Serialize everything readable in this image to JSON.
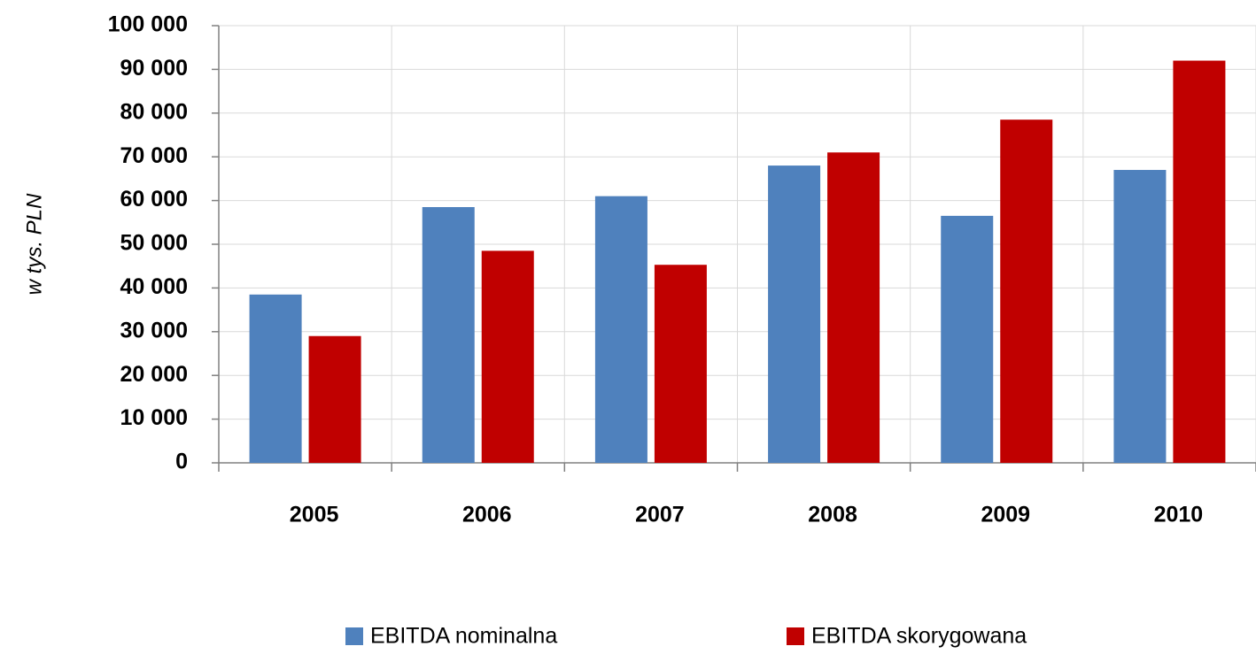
{
  "chart_data": {
    "type": "bar",
    "y_label": "w tys. PLN",
    "categories": [
      "2005",
      "2006",
      "2007",
      "2008",
      "2009",
      "2010"
    ],
    "series": [
      {
        "name": "EBITDA nominalna",
        "color": "#4f81bd",
        "values": [
          38500,
          58500,
          61000,
          68000,
          56500,
          67000
        ]
      },
      {
        "name": "EBITDA skorygowana",
        "color": "#c00000",
        "values": [
          29000,
          48500,
          45300,
          71000,
          78500,
          92000
        ]
      }
    ],
    "ylim": [
      0,
      100000
    ],
    "yticks": [
      0,
      {
        "value": 10000,
        "label": "10 000"
      },
      {
        "value": 20000,
        "label": "20 000"
      },
      {
        "value": 30000,
        "label": "30 000"
      },
      {
        "value": 40000,
        "label": "40 000"
      },
      {
        "value": 50000,
        "label": "50 000"
      },
      {
        "value": 60000,
        "label": "60 000"
      },
      {
        "value": 70000,
        "label": "70 000"
      },
      {
        "value": 80000,
        "label": "80 000"
      },
      {
        "value": 90000,
        "label": "90 000"
      },
      {
        "value": 100000,
        "label": "100 000"
      }
    ],
    "grid": true,
    "legend": "bottom"
  }
}
